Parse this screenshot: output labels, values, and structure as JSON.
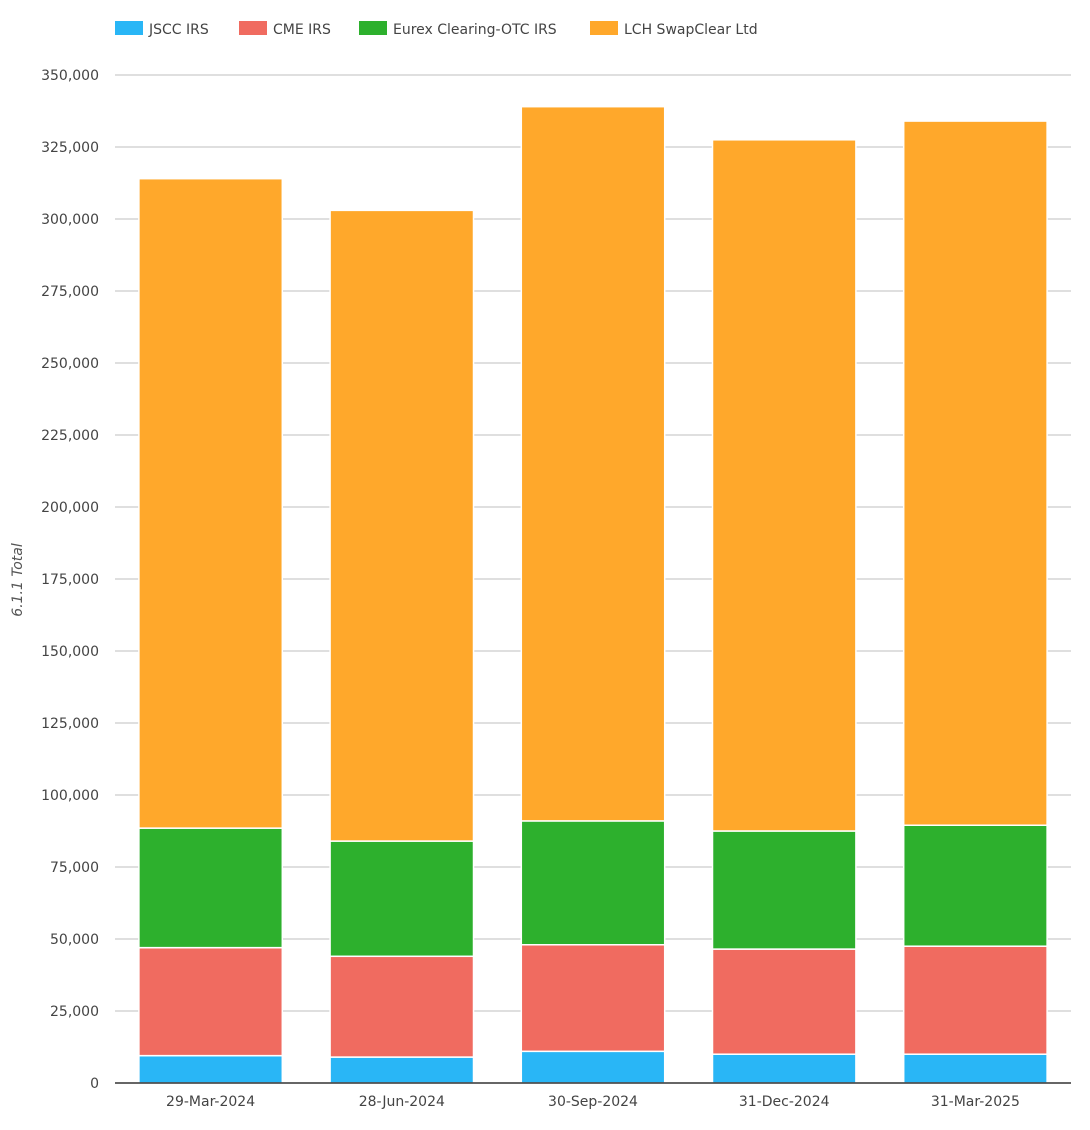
{
  "chart_data": {
    "type": "bar",
    "stacked": true,
    "title": "",
    "xlabel": "",
    "ylabel": "6.1.1 Total",
    "categories": [
      "29-Mar-2024",
      "28-Jun-2024",
      "30-Sep-2024",
      "31-Dec-2024",
      "31-Mar-2025"
    ],
    "series": [
      {
        "name": "JSCC IRS",
        "color": "#29b6f6",
        "values": [
          9500,
          9000,
          11000,
          10000,
          10000
        ]
      },
      {
        "name": "CME IRS",
        "color": "#f06b60",
        "values": [
          37500,
          35000,
          37000,
          36500,
          37500
        ]
      },
      {
        "name": "Eurex Clearing-OTC IRS",
        "color": "#2db02d",
        "values": [
          41500,
          40000,
          43000,
          41000,
          42000
        ]
      },
      {
        "name": "LCH SwapClear Ltd",
        "color": "#ffa82b",
        "values": [
          225500,
          219000,
          248000,
          240000,
          244500
        ]
      }
    ],
    "ylim": [
      0,
      350000
    ],
    "yticks": [
      0,
      25000,
      50000,
      75000,
      100000,
      125000,
      150000,
      175000,
      200000,
      225000,
      250000,
      275000,
      300000,
      325000,
      350000
    ],
    "ytick_labels": [
      "0",
      "25,000",
      "50,000",
      "75,000",
      "100,000",
      "125,000",
      "150,000",
      "175,000",
      "200,000",
      "225,000",
      "250,000",
      "275,000",
      "300,000",
      "325,000",
      "350,000"
    ],
    "grid": true,
    "legend_position": "top-left"
  }
}
